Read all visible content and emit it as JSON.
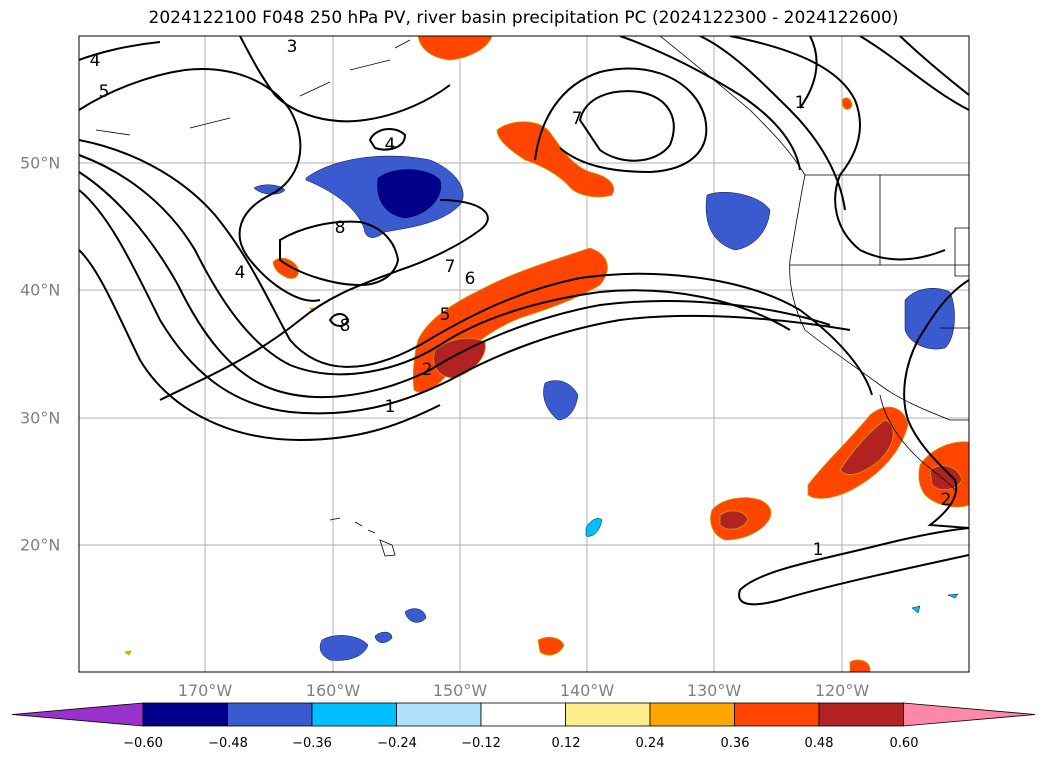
{
  "title": "2024122100 F048 250 hPa PV, river basin precipitation PC (2024122300 - 2024122600)",
  "map": {
    "longitude_labels": [
      "170°W",
      "160°W",
      "150°W",
      "140°W",
      "130°W",
      "120°W"
    ],
    "latitude_labels": [
      "50°N",
      "40°N",
      "30°N",
      "20°N"
    ],
    "pv_contour_labels": [
      "1",
      "1",
      "2",
      "2",
      "3",
      "4",
      "4",
      "4",
      "5",
      "5",
      "6",
      "7",
      "7",
      "8",
      "8",
      "1"
    ],
    "colors": {
      "coast": "#000000",
      "grid": "#b0b0b0",
      "contour": "#000000",
      "shade_neg_strong": "#00008b",
      "shade_neg_mid": "#3a5bd0",
      "shade_neg_light": "#00bfff",
      "shade_pos_light": "#ffa500",
      "shade_pos_mid": "#ff4500",
      "shade_pos_strong": "#b22222"
    }
  },
  "colorbar": {
    "tick_labels": [
      "−0.60",
      "−0.48",
      "−0.36",
      "−0.24",
      "−0.12",
      "0.12",
      "0.24",
      "0.36",
      "0.48",
      "0.60"
    ],
    "colors": [
      "#9932cc",
      "#00008b",
      "#3a5bd0",
      "#00bfff",
      "#afe1fa",
      "#ffffff",
      "#ffec8b",
      "#ffa500",
      "#ff4500",
      "#b22222",
      "#ff88aa"
    ]
  }
}
